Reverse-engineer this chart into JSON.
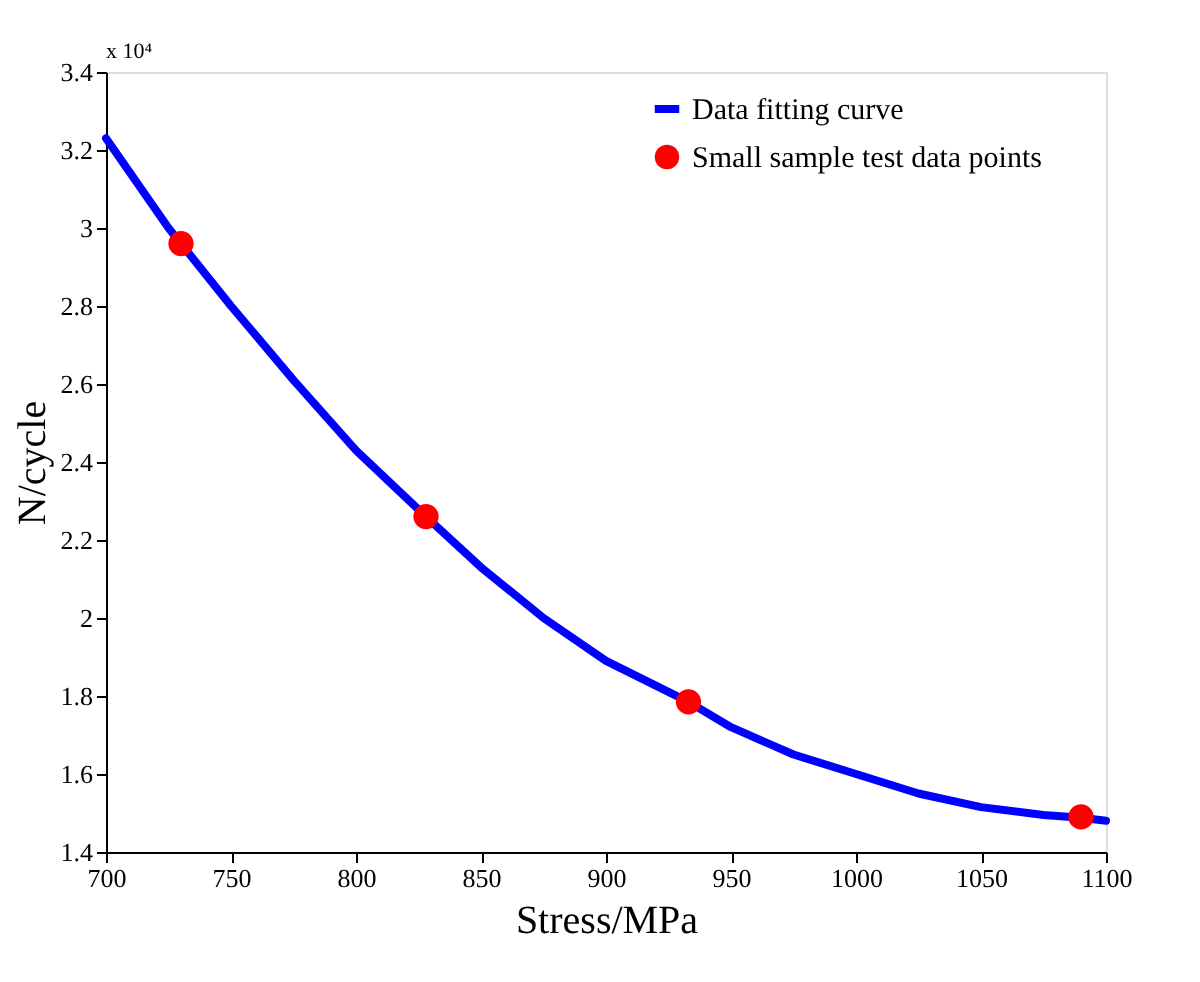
{
  "chart_data": {
    "type": "line",
    "xlabel": "Stress/MPa",
    "ylabel": "N/cycle",
    "annotations": [
      "x 10⁴"
    ],
    "xlim": [
      700,
      1100
    ],
    "xticks": [
      700,
      750,
      800,
      850,
      900,
      950,
      1000,
      1050,
      1100
    ],
    "ylim": [
      1.4,
      3.4
    ],
    "yticks": [
      1.4,
      1.6,
      1.8,
      2,
      2.2,
      2.4,
      2.6,
      2.8,
      3,
      3.2,
      3.4
    ],
    "grid": false,
    "legend": "top right",
    "series": [
      {
        "name": "Data fitting curve",
        "color": "#0000ff",
        "line_style": "solid",
        "marker": "none",
        "x": [
          700,
          725,
          750,
          775,
          800,
          828,
          850,
          875,
          900,
          933,
          950,
          975,
          1000,
          1025,
          1050,
          1075,
          1090,
          1100
        ],
        "values": [
          3.23,
          3.0,
          2.8,
          2.61,
          2.43,
          2.26,
          2.13,
          2.0,
          1.89,
          1.785,
          1.72,
          1.65,
          1.6,
          1.55,
          1.515,
          1.495,
          1.488,
          1.48
        ]
      },
      {
        "name": "Small sample test data points",
        "type": "scatter",
        "color": "#ff0000",
        "marker": "circle",
        "x": [
          730,
          828,
          933,
          1090
        ],
        "values": [
          2.96,
          2.26,
          1.785,
          1.49
        ]
      }
    ]
  }
}
